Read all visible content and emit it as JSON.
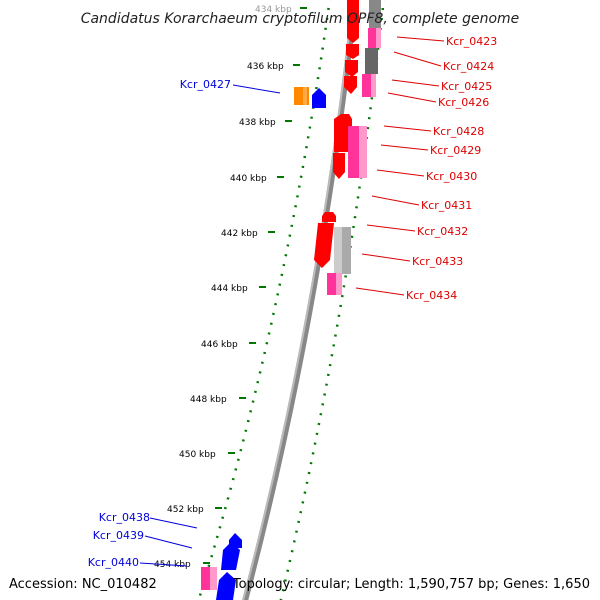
{
  "title": "Candidatus Korarchaeum cryptofilum OPF8, complete genome",
  "accession": "Accession: NC_010482",
  "topology": "Topology: circular; Length: 1,590,757 bp; Genes: 1,650",
  "ticks": [
    {
      "label": "434 kbp",
      "faded": true
    },
    {
      "label": "436 kbp"
    },
    {
      "label": "438 kbp"
    },
    {
      "label": "440 kbp"
    },
    {
      "label": "442 kbp"
    },
    {
      "label": "444 kbp"
    },
    {
      "label": "446 kbp"
    },
    {
      "label": "448 kbp"
    },
    {
      "label": "450 kbp"
    },
    {
      "label": "452 kbp"
    },
    {
      "label": "454 kbp"
    }
  ],
  "colors": {
    "red": "#ff0000",
    "magenta": "#ff3399",
    "pink": "#ff99cc",
    "blue": "#0000ff",
    "orange": "#ff8800",
    "darkgray": "#888888",
    "lightgray": "#cccccc",
    "green": "#007700",
    "backbone": "#808080"
  },
  "right_labels": [
    "Kcr_0423",
    "Kcr_0424",
    "Kcr_0425",
    "Kcr_0426",
    "Kcr_0428",
    "Kcr_0429",
    "Kcr_0430",
    "Kcr_0431",
    "Kcr_0432",
    "Kcr_0433",
    "Kcr_0434"
  ],
  "left_labels": [
    "Kcr_0427",
    "Kcr_0438",
    "Kcr_0439",
    "Kcr_0440"
  ]
}
